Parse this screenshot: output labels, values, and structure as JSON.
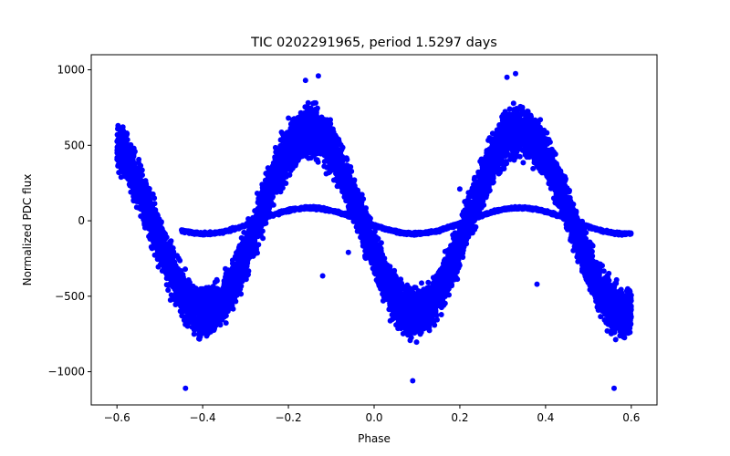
{
  "chart_data": {
    "type": "scatter",
    "title": "TIC 0202291965, period 1.5297 days",
    "xlabel": "Phase",
    "ylabel": "Normalized PDC flux",
    "xlim": [
      -0.66,
      0.66
    ],
    "ylim": [
      -1220,
      1100
    ],
    "xticks": [
      -0.6,
      -0.4,
      -0.2,
      0.0,
      0.2,
      0.4,
      0.6
    ],
    "xtick_labels": [
      "−0.6",
      "−0.4",
      "−0.2",
      "0.0",
      "0.2",
      "0.4",
      "0.6"
    ],
    "yticks": [
      -1000,
      -500,
      0,
      500,
      1000
    ],
    "ytick_labels": [
      "−1000",
      "−500",
      "0",
      "500",
      "1000"
    ],
    "grid": false,
    "marker_color": "#0000ff",
    "series": [
      {
        "name": "main sinusoidal band",
        "x_range": [
          -0.6,
          0.6
        ],
        "model": "amplitude*cos(2*pi*(phase - phase_peak)/0.5) + offset",
        "amplitude": 600,
        "offset": -10,
        "phase_peak": [
          -0.15,
          0.34
        ],
        "scatter_halfwidth": 220,
        "n_points": 9000
      },
      {
        "name": "low-amplitude band",
        "x_range": [
          -0.45,
          0.6
        ],
        "model": "amplitude*cos(2*pi*(phase - phase_peak)/0.5) + offset",
        "amplitude": 85,
        "offset": 0,
        "phase_peak": [
          -0.15,
          0.34
        ],
        "scatter_halfwidth": 12,
        "n_points": 1800
      }
    ],
    "outliers": {
      "x": [
        -0.44,
        0.56,
        -0.2,
        -0.16,
        -0.13,
        0.31,
        0.33,
        0.38,
        -0.06,
        0.09,
        -0.12,
        0.2
      ],
      "y": [
        -1110,
        -1110,
        680,
        930,
        960,
        950,
        975,
        -420,
        -210,
        -1060,
        -365,
        210
      ]
    }
  }
}
